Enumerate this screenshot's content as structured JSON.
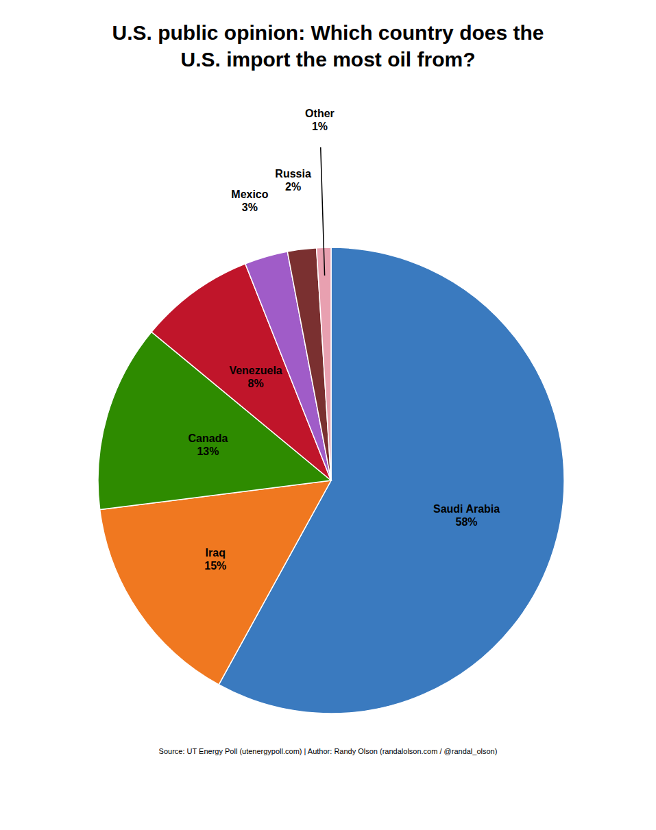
{
  "chart_data": {
    "type": "pie",
    "title": "U.S. public opinion: Which country does the\nU.S. import the most oil from?",
    "annotations": [
      "Source: UT Energy Poll (utenergypoll.com) | Author: Randy Olson (randalolson.com / @randal_olson)"
    ],
    "categories": [
      "Saudi Arabia",
      "Iraq",
      "Canada",
      "Venezuela",
      "Mexico",
      "Russia",
      "Other"
    ],
    "values": [
      58,
      15,
      13,
      8,
      3,
      2,
      1
    ],
    "value_labels": [
      "58%",
      "15%",
      "13%",
      "8%",
      "3%",
      "2%",
      "1%"
    ],
    "colors": [
      "#3a7abf",
      "#f07820",
      "#2e8b00",
      "#c0152a",
      "#a05cc8",
      "#7a3030",
      "#e8a0b0"
    ],
    "data_labels": true
  }
}
